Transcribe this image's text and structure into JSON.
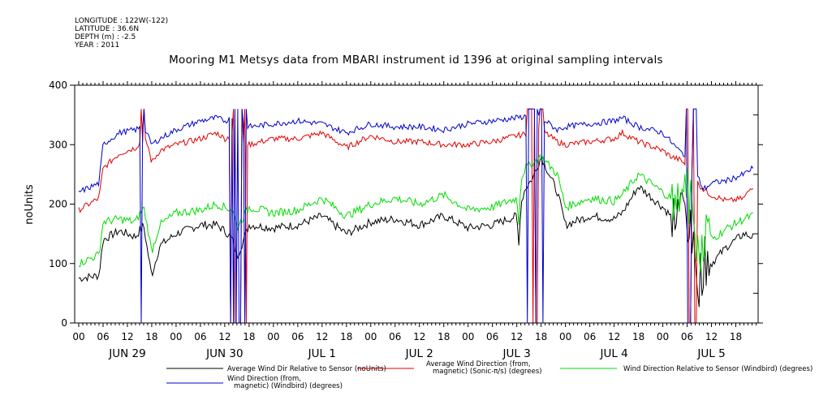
{
  "meta_lines": [
    "LONGITUDE : 122W(-122)",
    "LATITUDE : 36.6N",
    "DEPTH (m) : -2.5",
    "YEAR : 2011"
  ],
  "chart_data": {
    "type": "line",
    "title": "Mooring M1 Metsys data from MBARI instrument id 1396 at original sampling intervals",
    "xlabel": "",
    "ylabel": "noUnits",
    "ylim": [
      0,
      400
    ],
    "y_ticks": [
      0,
      100,
      200,
      300,
      400
    ],
    "x_unit": "hours since 2011-06-29 00:00",
    "xlim": [
      -1,
      167.5
    ],
    "hour_ticks": [
      "00",
      "06",
      "12",
      "18",
      "00",
      "06",
      "12",
      "18",
      "00",
      "06",
      "12",
      "18",
      "00",
      "06",
      "12",
      "18",
      "00",
      "06",
      "12",
      "18",
      "00",
      "06",
      "12",
      "18",
      "00",
      "06",
      "12",
      "18"
    ],
    "day_labels": [
      "JUN 29",
      "JUN 30",
      "JUL  1",
      "JUL  2",
      "JUL  3",
      "JUL  4",
      "JUL  5"
    ],
    "grid": false,
    "legend_position": "bottom",
    "colors": {
      "black": "#000000",
      "red": "#e00000",
      "green": "#00dd00",
      "blue": "#0000cc"
    },
    "series": [
      {
        "name": "Average Wind Dir Relative to Sensor (noUnits)",
        "color": "black",
        "x": [
          0,
          5,
          6,
          10,
          14,
          16,
          17,
          18,
          20,
          24,
          30,
          34,
          36,
          38,
          39,
          42,
          48,
          54,
          60,
          66,
          72,
          78,
          84,
          90,
          96,
          102,
          108,
          108.5,
          109,
          110,
          112,
          114,
          118,
          120,
          126,
          132,
          134,
          138,
          144,
          146,
          147,
          148,
          149,
          150,
          151,
          152,
          153,
          154,
          155,
          156,
          160,
          164,
          166
        ],
        "y": [
          75,
          80,
          140,
          155,
          145,
          165,
          120,
          80,
          130,
          150,
          165,
          165,
          155,
          140,
          110,
          165,
          160,
          165,
          180,
          150,
          170,
          175,
          165,
          180,
          160,
          165,
          180,
          130,
          200,
          225,
          245,
          280,
          220,
          165,
          180,
          175,
          185,
          230,
          195,
          180,
          175,
          190,
          200,
          180,
          150,
          90,
          75,
          95,
          120,
          100,
          130,
          150,
          145
        ]
      },
      {
        "name": "Average Wind Direction (from, magnetic) (Sonic-π/s) (degrees)",
        "color": "red",
        "x": [
          0,
          5,
          6,
          10,
          14,
          16,
          17,
          18,
          20,
          24,
          30,
          34,
          36,
          38,
          42,
          48,
          54,
          60,
          66,
          72,
          78,
          84,
          90,
          96,
          102,
          108,
          112,
          114,
          118,
          120,
          126,
          132,
          134,
          138,
          144,
          146,
          148,
          150,
          152,
          154,
          156,
          160,
          164,
          166
        ],
        "y": [
          190,
          210,
          260,
          285,
          295,
          310,
          300,
          270,
          290,
          300,
          310,
          320,
          310,
          315,
          300,
          310,
          310,
          320,
          295,
          315,
          305,
          305,
          300,
          300,
          305,
          315,
          320,
          325,
          305,
          300,
          305,
          310,
          320,
          305,
          290,
          280,
          275,
          265,
          240,
          225,
          215,
          205,
          210,
          230
        ]
      },
      {
        "name": "Wind Direction Relative to Sensor (Windbird) (degrees)",
        "color": "green",
        "x": [
          0,
          5,
          6,
          10,
          14,
          16,
          17,
          18,
          20,
          24,
          30,
          34,
          36,
          38,
          39,
          42,
          48,
          54,
          60,
          66,
          72,
          78,
          84,
          90,
          96,
          102,
          108,
          108.5,
          109,
          110,
          112,
          114,
          118,
          120,
          126,
          132,
          134,
          138,
          144,
          146,
          147,
          148,
          149,
          150,
          151,
          152,
          153,
          154,
          155,
          156,
          160,
          164,
          166
        ],
        "y": [
          100,
          115,
          170,
          175,
          170,
          195,
          160,
          120,
          165,
          185,
          190,
          200,
          195,
          190,
          160,
          195,
          185,
          190,
          210,
          180,
          200,
          210,
          200,
          215,
          190,
          195,
          210,
          170,
          240,
          260,
          270,
          280,
          250,
          195,
          210,
          205,
          215,
          250,
          220,
          210,
          195,
          210,
          240,
          220,
          190,
          150,
          120,
          140,
          165,
          140,
          160,
          175,
          180
        ]
      },
      {
        "name": "Wind Direction (from, magnetic) (Windbird) (degrees)",
        "color": "blue",
        "x": [
          0,
          5,
          6,
          10,
          14,
          16,
          17,
          18,
          20,
          24,
          30,
          34,
          36,
          38,
          42,
          48,
          54,
          60,
          66,
          72,
          78,
          84,
          90,
          96,
          102,
          108,
          112,
          114,
          118,
          120,
          126,
          132,
          134,
          138,
          144,
          146,
          148,
          150,
          152,
          154,
          156,
          160,
          164,
          166
        ],
        "y": [
          220,
          235,
          300,
          320,
          325,
          330,
          315,
          300,
          310,
          325,
          340,
          345,
          340,
          345,
          330,
          335,
          340,
          335,
          320,
          335,
          330,
          330,
          325,
          335,
          340,
          345,
          350,
          345,
          325,
          330,
          335,
          340,
          345,
          330,
          320,
          305,
          290,
          280,
          255,
          225,
          235,
          240,
          250,
          260
        ]
      }
    ]
  }
}
